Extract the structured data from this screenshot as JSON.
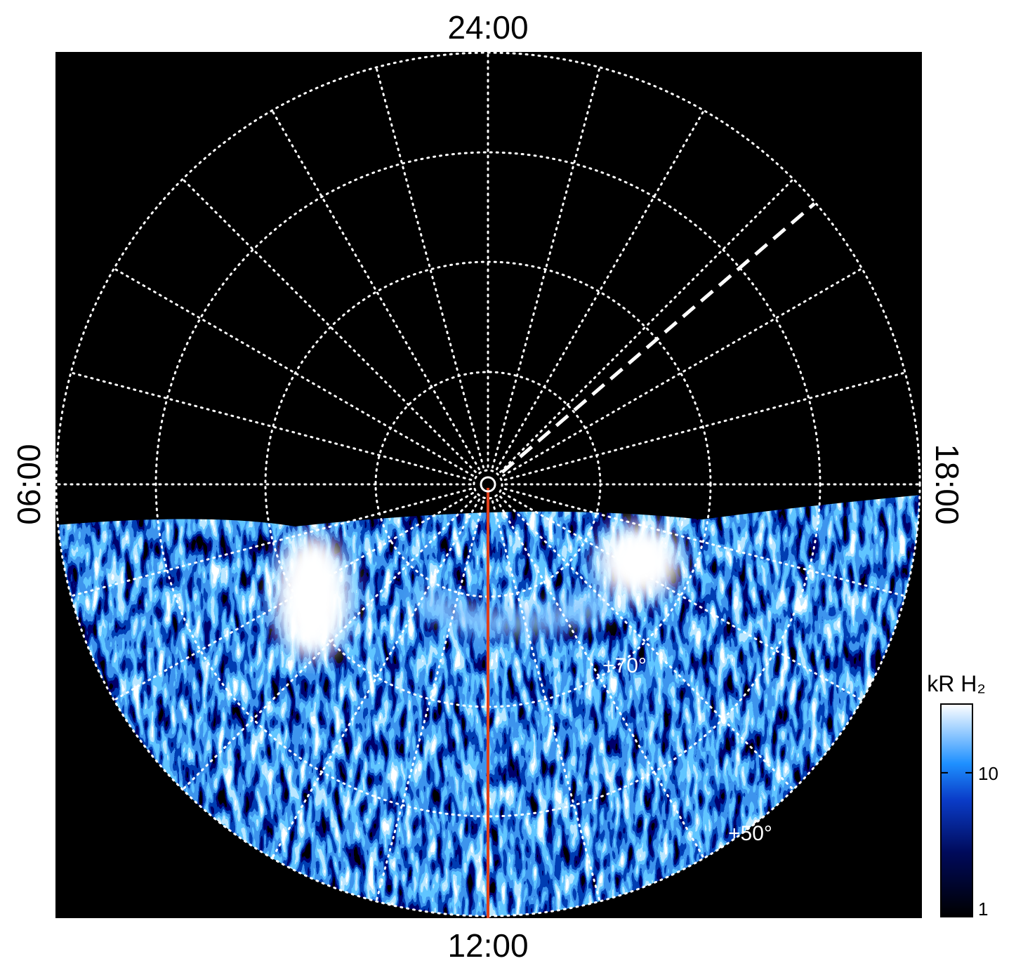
{
  "labels": {
    "top": "24:00",
    "left": "06:00",
    "right": "18:00",
    "bottom": "12:00"
  },
  "latitude_labels": [
    "+70°",
    "+50°"
  ],
  "colorbar": {
    "title": "kR H₂",
    "scale": "log",
    "lim": [
      1,
      30
    ],
    "ticks": [
      1,
      10
    ]
  }
}
